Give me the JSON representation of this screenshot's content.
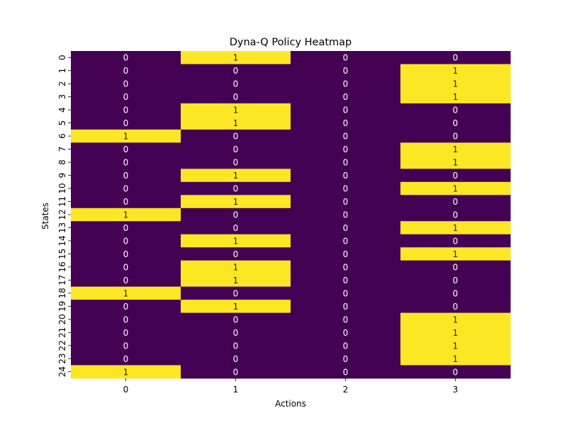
{
  "chart_data": {
    "type": "heatmap",
    "title": "Dyna-Q Policy Heatmap",
    "xlabel": "Actions",
    "ylabel": "States",
    "x_categories": [
      "0",
      "1",
      "2",
      "3"
    ],
    "y_categories": [
      "0",
      "1",
      "2",
      "3",
      "4",
      "5",
      "6",
      "7",
      "8",
      "9",
      "10",
      "11",
      "12",
      "13",
      "14",
      "15",
      "16",
      "17",
      "18",
      "19",
      "20",
      "21",
      "22",
      "23",
      "24"
    ],
    "values": [
      [
        0,
        1,
        0,
        0
      ],
      [
        0,
        0,
        0,
        1
      ],
      [
        0,
        0,
        0,
        1
      ],
      [
        0,
        0,
        0,
        1
      ],
      [
        0,
        1,
        0,
        0
      ],
      [
        0,
        1,
        0,
        0
      ],
      [
        1,
        0,
        0,
        0
      ],
      [
        0,
        0,
        0,
        1
      ],
      [
        0,
        0,
        0,
        1
      ],
      [
        0,
        1,
        0,
        0
      ],
      [
        0,
        0,
        0,
        1
      ],
      [
        0,
        1,
        0,
        0
      ],
      [
        1,
        0,
        0,
        0
      ],
      [
        0,
        0,
        0,
        1
      ],
      [
        0,
        1,
        0,
        0
      ],
      [
        0,
        0,
        0,
        1
      ],
      [
        0,
        1,
        0,
        0
      ],
      [
        0,
        1,
        0,
        0
      ],
      [
        1,
        0,
        0,
        0
      ],
      [
        0,
        1,
        0,
        0
      ],
      [
        0,
        0,
        0,
        1
      ],
      [
        0,
        0,
        0,
        1
      ],
      [
        0,
        0,
        0,
        1
      ],
      [
        0,
        0,
        0,
        1
      ],
      [
        1,
        0,
        0,
        0
      ]
    ],
    "annotated": true,
    "colormap": {
      "low": "#440154",
      "high": "#fde725"
    },
    "text_colors": {
      "on_low": "#ffffff",
      "on_high": "#262626"
    }
  }
}
